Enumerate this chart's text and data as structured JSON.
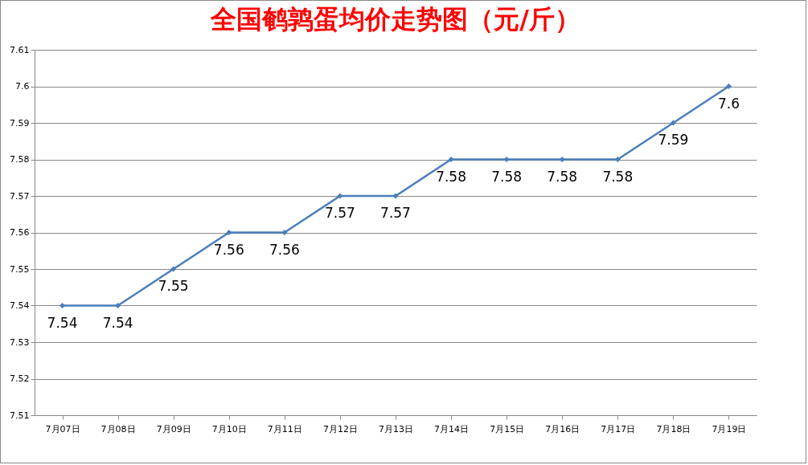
{
  "chart_data": {
    "type": "line",
    "title": "全国鹌鹑蛋均价走势图（元/斤）",
    "categories": [
      "7月07日",
      "7月08日",
      "7月09日",
      "7月10日",
      "7月11日",
      "7月12日",
      "7月13日",
      "7月14日",
      "7月15日",
      "7月16日",
      "7月17日",
      "7月18日",
      "7月19日"
    ],
    "series": [
      {
        "color": "#4a7ebb",
        "values": [
          7.54,
          7.54,
          7.55,
          7.56,
          7.56,
          7.57,
          7.57,
          7.58,
          7.58,
          7.58,
          7.58,
          7.59,
          7.6
        ]
      }
    ],
    "ylim": [
      7.51,
      7.61
    ],
    "yticks": [
      7.51,
      7.52,
      7.53,
      7.54,
      7.55,
      7.56,
      7.57,
      7.58,
      7.59,
      7.6,
      7.61
    ],
    "grid": "y",
    "marker": "diamond",
    "line_style": "solid",
    "data_labels": true
  }
}
